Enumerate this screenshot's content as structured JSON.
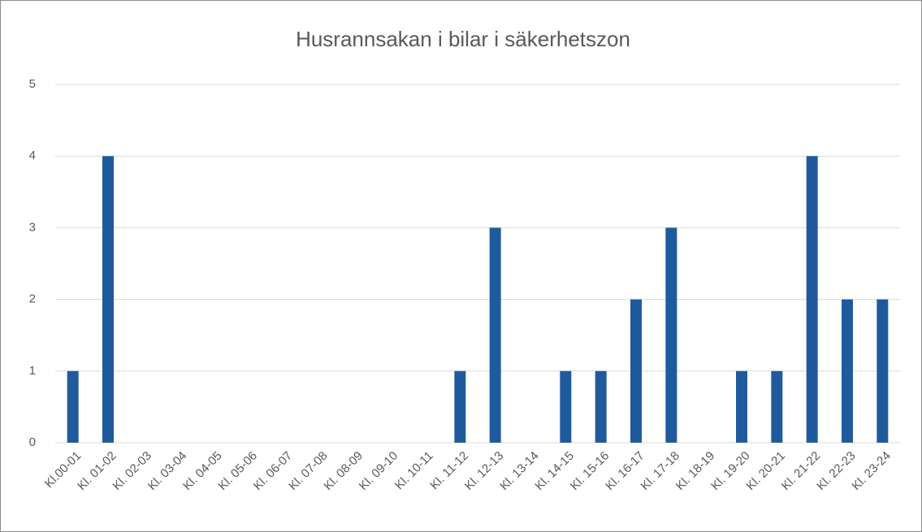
{
  "chart_data": {
    "type": "bar",
    "title": "Husrannsakan i bilar i säkerhetszon",
    "categories": [
      "Kl.00-01",
      "Kl. 01-02",
      "Kl. 02-03",
      "Kl. 03-04",
      "Kl. 04-05",
      "Kl. 05-06",
      "Kl. 06-07",
      "Kl. 07-08",
      "Kl. 08-09",
      "Kl. 09-10",
      "Kl. 10-11",
      "Kl. 11-12",
      "Kl. 12-13",
      "Kl. 13-14",
      "Kl. 14-15",
      "Kl. 15-16",
      "Kl. 16-17",
      "Kl. 17-18",
      "Kl. 18-19",
      "Kl. 19-20",
      "Kl. 20-21",
      "Kl. 21-22",
      "Kl. 22-23",
      "Kl. 23-24"
    ],
    "values": [
      1,
      4,
      0,
      0,
      0,
      0,
      0,
      0,
      0,
      0,
      0,
      1,
      3,
      0,
      1,
      1,
      2,
      3,
      0,
      1,
      1,
      4,
      2,
      2
    ],
    "color": "#1f5b9c",
    "ylim": [
      0,
      5
    ],
    "yticks": [
      0,
      1,
      2,
      3,
      4,
      5
    ],
    "grid": true
  }
}
